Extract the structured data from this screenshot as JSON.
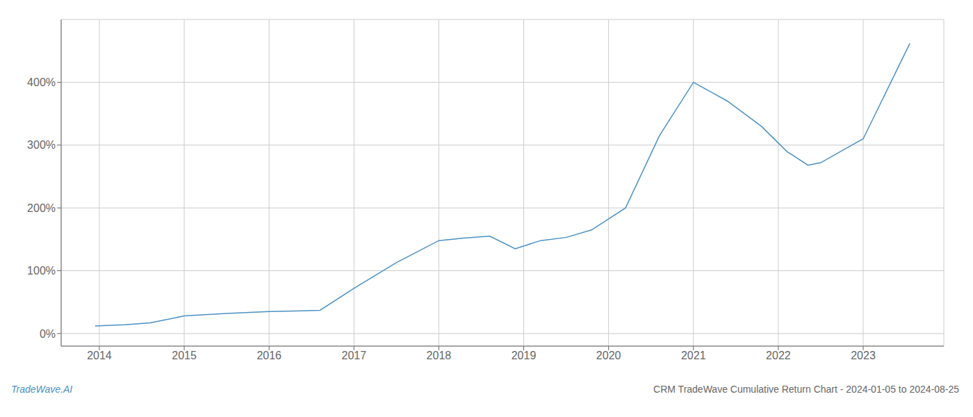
{
  "chart_data": {
    "type": "line",
    "title": "CRM TradeWave Cumulative Return Chart - 2024-01-05 to 2024-08-25",
    "annotations": [
      "TradeWave.AI"
    ],
    "color": "#4a90c4",
    "x": [
      2013.95,
      2014.3,
      2014.6,
      2015.0,
      2015.5,
      2016.0,
      2016.3,
      2016.6,
      2017.0,
      2017.5,
      2018.0,
      2018.3,
      2018.6,
      2018.9,
      2019.2,
      2019.5,
      2019.8,
      2020.2,
      2020.6,
      2021.0,
      2021.4,
      2021.8,
      2022.1,
      2022.35,
      2022.5,
      2022.8,
      2023.0,
      2023.55
    ],
    "values": [
      12,
      14,
      17,
      28,
      32,
      35,
      36,
      37,
      72,
      113,
      148,
      152,
      155,
      135,
      148,
      153,
      165,
      200,
      315,
      400,
      370,
      330,
      290,
      268,
      272,
      295,
      310,
      462
    ],
    "xlim": [
      2013.55,
      2023.95
    ],
    "ylim": [
      -20,
      500
    ],
    "xticks": [
      2014,
      2015,
      2016,
      2017,
      2018,
      2019,
      2020,
      2021,
      2022,
      2023
    ],
    "yticks": [
      {
        "value": 0,
        "label": "0%"
      },
      {
        "value": 100,
        "label": "100%"
      },
      {
        "value": 200,
        "label": "200%"
      },
      {
        "value": 300,
        "label": "300%"
      },
      {
        "value": 400,
        "label": "400%"
      }
    ],
    "grid": true
  }
}
